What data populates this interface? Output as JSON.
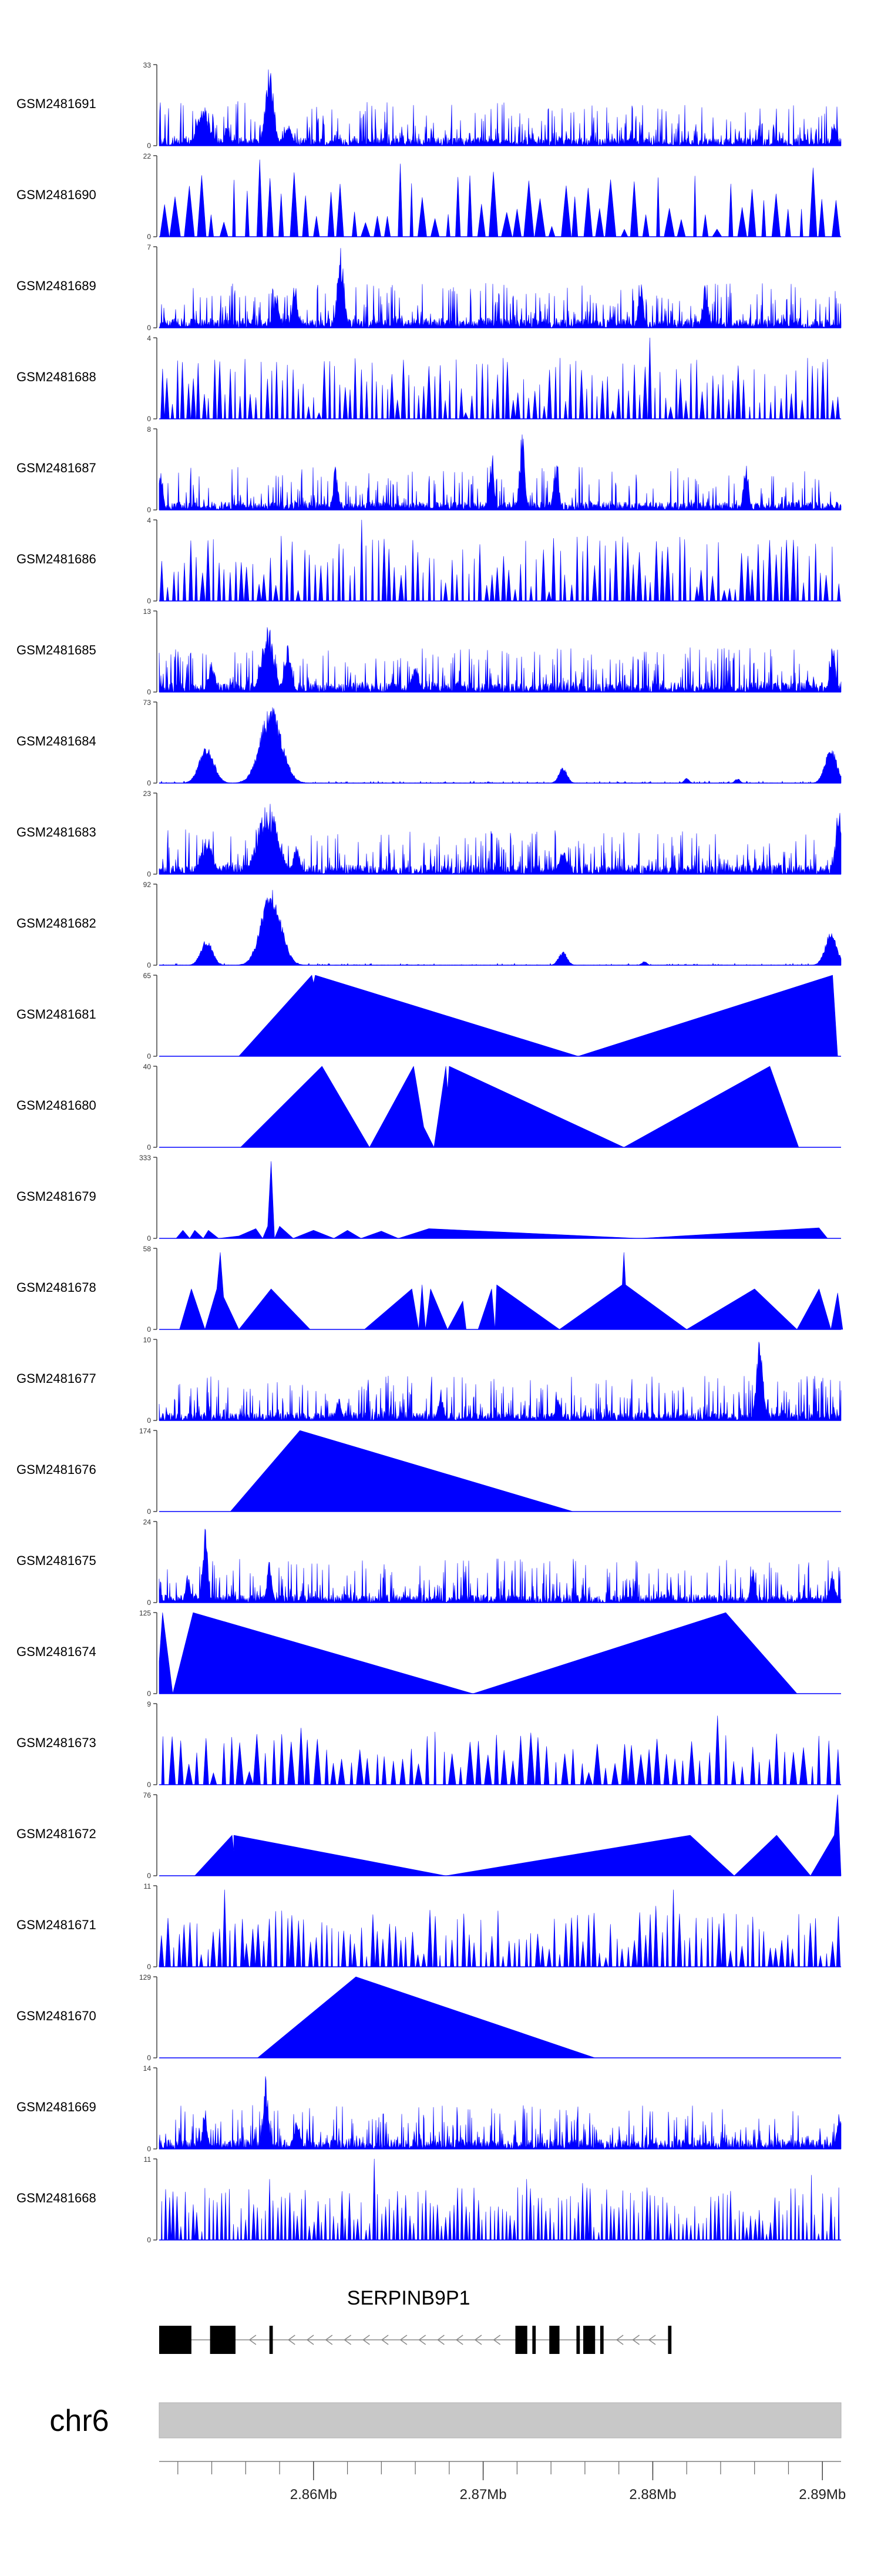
{
  "chart_data": {
    "type": "area",
    "title": "",
    "xlabel": "",
    "ylabel": "",
    "x_unit": "Mb",
    "xlim": [
      2.8509,
      2.8911
    ],
    "x_ticks": [
      {
        "value": 2.86,
        "label": "2.86Mb"
      },
      {
        "value": 2.87,
        "label": "2.87Mb"
      },
      {
        "value": 2.88,
        "label": "2.88Mb"
      },
      {
        "value": 2.89,
        "label": "2.89Mb"
      }
    ],
    "minor_tick_step": 0.002,
    "chromosome": "chr6",
    "gene": {
      "name": "SERPINB9P1",
      "strand": "-",
      "start": 2.8509,
      "end": 2.881,
      "exons": [
        [
          2.8509,
          2.8528
        ],
        [
          2.8539,
          2.8554
        ],
        [
          2.8574,
          2.8576
        ],
        [
          2.8719,
          2.8726
        ],
        [
          2.8729,
          2.8731
        ],
        [
          2.8739,
          2.8745
        ],
        [
          2.8755,
          2.8757
        ],
        [
          2.8759,
          2.8766
        ],
        [
          2.8769,
          2.8771
        ],
        [
          2.8809,
          2.8811
        ]
      ]
    },
    "series": [
      {
        "name": "GSM2481691",
        "ymax": 33,
        "style": "dense",
        "seed": 91,
        "base": 0.1,
        "density": 0.4,
        "peaks": [
          [
            2.8535,
            0.5,
            14
          ],
          [
            2.8539,
            0.25,
            8
          ],
          [
            2.8574,
            1.0,
            10
          ],
          [
            2.8585,
            0.3,
            8
          ],
          [
            2.8549,
            0.25,
            6
          ],
          [
            2.8907,
            0.3,
            6
          ]
        ]
      },
      {
        "name": "GSM2481690",
        "ymax": 22,
        "style": "sparse",
        "seed": 90,
        "count": 58,
        "amin": 0.25,
        "amax": 0.8,
        "peaks": [
          [
            2.8553,
            0.7
          ],
          [
            2.8565,
            0.95
          ],
          [
            2.8603,
            0.55
          ],
          [
            2.8645,
            0.9
          ],
          [
            2.8705,
            0.8
          ],
          [
            2.8823,
            0.75
          ],
          [
            2.8893,
            0.85
          ],
          [
            2.8906,
            0.45
          ]
        ]
      },
      {
        "name": "GSM2481689",
        "ymax": 7,
        "style": "dense",
        "seed": 89,
        "base": 0.12,
        "density": 0.35,
        "peaks": [
          [
            2.8616,
            1.0,
            8
          ],
          [
            2.8589,
            0.55,
            6
          ],
          [
            2.8578,
            0.45,
            6
          ],
          [
            2.8793,
            0.55,
            6
          ],
          [
            2.8831,
            0.55,
            6
          ]
        ]
      },
      {
        "name": "GSM2481688",
        "ymax": 4,
        "style": "sparse",
        "seed": 88,
        "count": 130,
        "amin": 0.2,
        "amax": 0.75,
        "peaks": [
          [
            2.8798,
            1.0
          ],
          [
            2.8743,
            0.75
          ],
          [
            2.8889,
            0.75
          ],
          [
            2.8576,
            0.7
          ],
          [
            2.8713,
            0.7
          ]
        ]
      },
      {
        "name": "GSM2481687",
        "ymax": 8,
        "style": "dense",
        "seed": 87,
        "base": 0.1,
        "density": 0.3,
        "peaks": [
          [
            2.851,
            0.55,
            5
          ],
          [
            2.8723,
            1.0,
            6
          ],
          [
            2.8705,
            0.75,
            6
          ],
          [
            2.8743,
            0.65,
            6
          ],
          [
            2.8855,
            0.6,
            6
          ],
          [
            2.8613,
            0.55,
            6
          ]
        ]
      },
      {
        "name": "GSM2481686",
        "ymax": 4,
        "style": "sparse",
        "seed": 86,
        "count": 120,
        "amin": 0.3,
        "amax": 0.8,
        "peaks": [
          [
            2.8627,
            1.0
          ],
          [
            2.8578,
            0.8
          ],
          [
            2.8655,
            0.75
          ],
          [
            2.876,
            0.8
          ],
          [
            2.8867,
            0.75
          ]
        ]
      },
      {
        "name": "GSM2481685",
        "ymax": 13,
        "style": "dense",
        "seed": 85,
        "base": 0.12,
        "density": 0.4,
        "peaks": [
          [
            2.8573,
            0.85,
            14
          ],
          [
            2.8585,
            0.6,
            8
          ],
          [
            2.854,
            0.4,
            8
          ],
          [
            2.8906,
            0.65,
            6
          ],
          [
            2.866,
            0.35,
            8
          ]
        ]
      },
      {
        "name": "GSM2481684",
        "ymax": 73,
        "style": "envelope",
        "seed": 84,
        "base": 0.01,
        "density": 0.15,
        "peaks": [
          [
            2.8537,
            0.45,
            18
          ],
          [
            2.8575,
            0.95,
            26
          ],
          [
            2.8747,
            0.2,
            10
          ],
          [
            2.882,
            0.06,
            6
          ],
          [
            2.885,
            0.06,
            6
          ],
          [
            2.8905,
            0.45,
            14
          ]
        ]
      },
      {
        "name": "GSM2481683",
        "ymax": 23,
        "style": "dense",
        "seed": 83,
        "base": 0.12,
        "density": 0.4,
        "peaks": [
          [
            2.8537,
            0.45,
            14
          ],
          [
            2.8573,
            0.9,
            24
          ],
          [
            2.859,
            0.35,
            8
          ],
          [
            2.8747,
            0.3,
            10
          ],
          [
            2.891,
            0.95,
            8
          ]
        ]
      },
      {
        "name": "GSM2481682",
        "ymax": 92,
        "style": "envelope",
        "seed": 82,
        "base": 0.01,
        "density": 0.12,
        "peaks": [
          [
            2.8537,
            0.32,
            14
          ],
          [
            2.8575,
            0.95,
            24
          ],
          [
            2.8747,
            0.18,
            10
          ],
          [
            2.8795,
            0.05,
            6
          ],
          [
            2.8905,
            0.42,
            14
          ]
        ]
      },
      {
        "name": "GSM2481681",
        "ymax": 65,
        "style": "poly",
        "points": [
          [
            2.8556,
            0
          ],
          [
            2.8599,
            1.0
          ],
          [
            2.86,
            0.9
          ],
          [
            2.8601,
            1.0
          ],
          [
            2.8756,
            0
          ],
          [
            2.8906,
            1.0
          ],
          [
            2.8909,
            0
          ]
        ]
      },
      {
        "name": "GSM2481680",
        "ymax": 40,
        "style": "poly",
        "points": [
          [
            2.8557,
            0
          ],
          [
            2.8605,
            1.0
          ],
          [
            2.8633,
            0
          ],
          [
            2.8659,
            1.0
          ],
          [
            2.8665,
            0.25
          ],
          [
            2.8671,
            0
          ],
          [
            2.8678,
            1.0
          ],
          [
            2.8679,
            0.7
          ],
          [
            2.868,
            1.0
          ],
          [
            2.8783,
            0
          ],
          [
            2.8869,
            1.0
          ],
          [
            2.8886,
            0
          ]
        ]
      },
      {
        "name": "GSM2481679",
        "ymax": 333,
        "style": "poly",
        "points": [
          [
            2.8519,
            0
          ],
          [
            2.8523,
            0.1
          ],
          [
            2.8527,
            0
          ],
          [
            2.853,
            0.1
          ],
          [
            2.8535,
            0
          ],
          [
            2.8538,
            0.1
          ],
          [
            2.8544,
            0
          ],
          [
            2.8556,
            0.03
          ],
          [
            2.8566,
            0.12
          ],
          [
            2.857,
            0
          ],
          [
            2.8573,
            0.15
          ],
          [
            2.8575,
            0.95
          ],
          [
            2.8577,
            0
          ],
          [
            2.858,
            0.15
          ],
          [
            2.8588,
            0
          ],
          [
            2.86,
            0.1
          ],
          [
            2.8612,
            0
          ],
          [
            2.862,
            0.1
          ],
          [
            2.8628,
            0
          ],
          [
            2.864,
            0.09
          ],
          [
            2.865,
            0
          ],
          [
            2.8668,
            0.12
          ],
          [
            2.8792,
            0
          ],
          [
            2.8898,
            0.13
          ],
          [
            2.8903,
            0
          ]
        ]
      },
      {
        "name": "GSM2481678",
        "ymax": 58,
        "style": "poly",
        "points": [
          [
            2.8521,
            0
          ],
          [
            2.8528,
            0.5
          ],
          [
            2.8536,
            0
          ],
          [
            2.8543,
            0.5
          ],
          [
            2.8545,
            0.95
          ],
          [
            2.8547,
            0.4
          ],
          [
            2.8556,
            0
          ],
          [
            2.8575,
            0.5
          ],
          [
            2.8598,
            0
          ],
          [
            2.863,
            0
          ],
          [
            2.8658,
            0.5
          ],
          [
            2.8662,
            0
          ],
          [
            2.8664,
            0.55
          ],
          [
            2.8666,
            0
          ],
          [
            2.8669,
            0.5
          ],
          [
            2.8679,
            0
          ],
          [
            2.8688,
            0.35
          ],
          [
            2.869,
            0
          ],
          [
            2.8697,
            0
          ],
          [
            2.8705,
            0.5
          ],
          [
            2.8707,
            0
          ],
          [
            2.8708,
            0.55
          ],
          [
            2.8745,
            0
          ],
          [
            2.8782,
            0.55
          ],
          [
            2.8783,
            0.95
          ],
          [
            2.8784,
            0.55
          ],
          [
            2.882,
            0
          ],
          [
            2.886,
            0.5
          ],
          [
            2.8885,
            0
          ],
          [
            2.8898,
            0.5
          ],
          [
            2.8905,
            0
          ],
          [
            2.8909,
            0.45
          ],
          [
            2.8912,
            0
          ]
        ]
      },
      {
        "name": "GSM2481677",
        "ymax": 10,
        "style": "dense",
        "seed": 77,
        "base": 0.1,
        "density": 0.4,
        "peaks": [
          [
            2.8863,
            1.0,
            8
          ],
          [
            2.8615,
            0.3,
            6
          ],
          [
            2.8675,
            0.4,
            6
          ],
          [
            2.8744,
            0.3,
            6
          ]
        ]
      },
      {
        "name": "GSM2481676",
        "ymax": 174,
        "style": "poly",
        "points": [
          [
            2.8551,
            0
          ],
          [
            2.8592,
            1.0
          ],
          [
            2.8753,
            0
          ]
        ]
      },
      {
        "name": "GSM2481675",
        "ymax": 24,
        "style": "dense",
        "seed": 75,
        "base": 0.1,
        "density": 0.38,
        "peaks": [
          [
            2.8536,
            1.0,
            6
          ],
          [
            2.8526,
            0.35,
            6
          ],
          [
            2.8574,
            0.55,
            6
          ],
          [
            2.8859,
            0.4,
            6
          ],
          [
            2.8906,
            0.4,
            6
          ]
        ]
      },
      {
        "name": "GSM2481674",
        "ymax": 125,
        "style": "poly",
        "points": [
          [
            2.8509,
            0.4
          ],
          [
            2.8511,
            1.0
          ],
          [
            2.8517,
            0
          ],
          [
            2.8529,
            1.0
          ],
          [
            2.8694,
            0
          ],
          [
            2.8843,
            1.0
          ],
          [
            2.8885,
            0
          ]
        ]
      },
      {
        "name": "GSM2481673",
        "ymax": 9,
        "style": "sparse",
        "seed": 73,
        "count": 80,
        "amin": 0.25,
        "amax": 0.65,
        "peaks": [
          [
            2.8834,
            1.0
          ],
          [
            2.8589,
            0.7
          ],
          [
            2.8836,
            0.85
          ],
          [
            2.8668,
            0.65
          ],
          [
            2.8894,
            0.6
          ]
        ]
      },
      {
        "name": "GSM2481672",
        "ymax": 76,
        "style": "poly",
        "points": [
          [
            2.853,
            0
          ],
          [
            2.8552,
            0.5
          ],
          [
            2.8553,
            0.3
          ],
          [
            2.8553,
            0.5
          ],
          [
            2.8678,
            0
          ],
          [
            2.8822,
            0.5
          ],
          [
            2.8848,
            0
          ],
          [
            2.8873,
            0.5
          ],
          [
            2.8893,
            0
          ],
          [
            2.8907,
            0.5
          ],
          [
            2.8909,
            1.0
          ],
          [
            2.8911,
            0
          ]
        ]
      },
      {
        "name": "GSM2481671",
        "ymax": 11,
        "style": "sparse",
        "seed": 71,
        "count": 120,
        "amin": 0.25,
        "amax": 0.7,
        "peaks": [
          [
            2.8545,
            0.95
          ],
          [
            2.881,
            0.95
          ],
          [
            2.8665,
            0.7
          ],
          [
            2.88,
            0.75
          ],
          [
            2.8513,
            0.6
          ]
        ]
      },
      {
        "name": "GSM2481670",
        "ymax": 129,
        "style": "poly",
        "points": [
          [
            2.8567,
            0
          ],
          [
            2.8625,
            1.0
          ],
          [
            2.8766,
            0
          ]
        ]
      },
      {
        "name": "GSM2481669",
        "ymax": 14,
        "style": "dense",
        "seed": 69,
        "base": 0.12,
        "density": 0.4,
        "peaks": [
          [
            2.8572,
            0.95,
            6
          ],
          [
            2.8536,
            0.5,
            6
          ],
          [
            2.859,
            0.35,
            8
          ],
          [
            2.891,
            0.45,
            6
          ]
        ]
      },
      {
        "name": "GSM2481668",
        "ymax": 11,
        "style": "sparse",
        "seed": 68,
        "count": 170,
        "amin": 0.2,
        "amax": 0.65,
        "peaks": [
          [
            2.8635,
            1.0
          ],
          [
            2.8574,
            0.75
          ],
          [
            2.8893,
            0.8
          ],
          [
            2.8724,
            0.75
          ],
          [
            2.8758,
            0.7
          ]
        ]
      }
    ]
  }
}
